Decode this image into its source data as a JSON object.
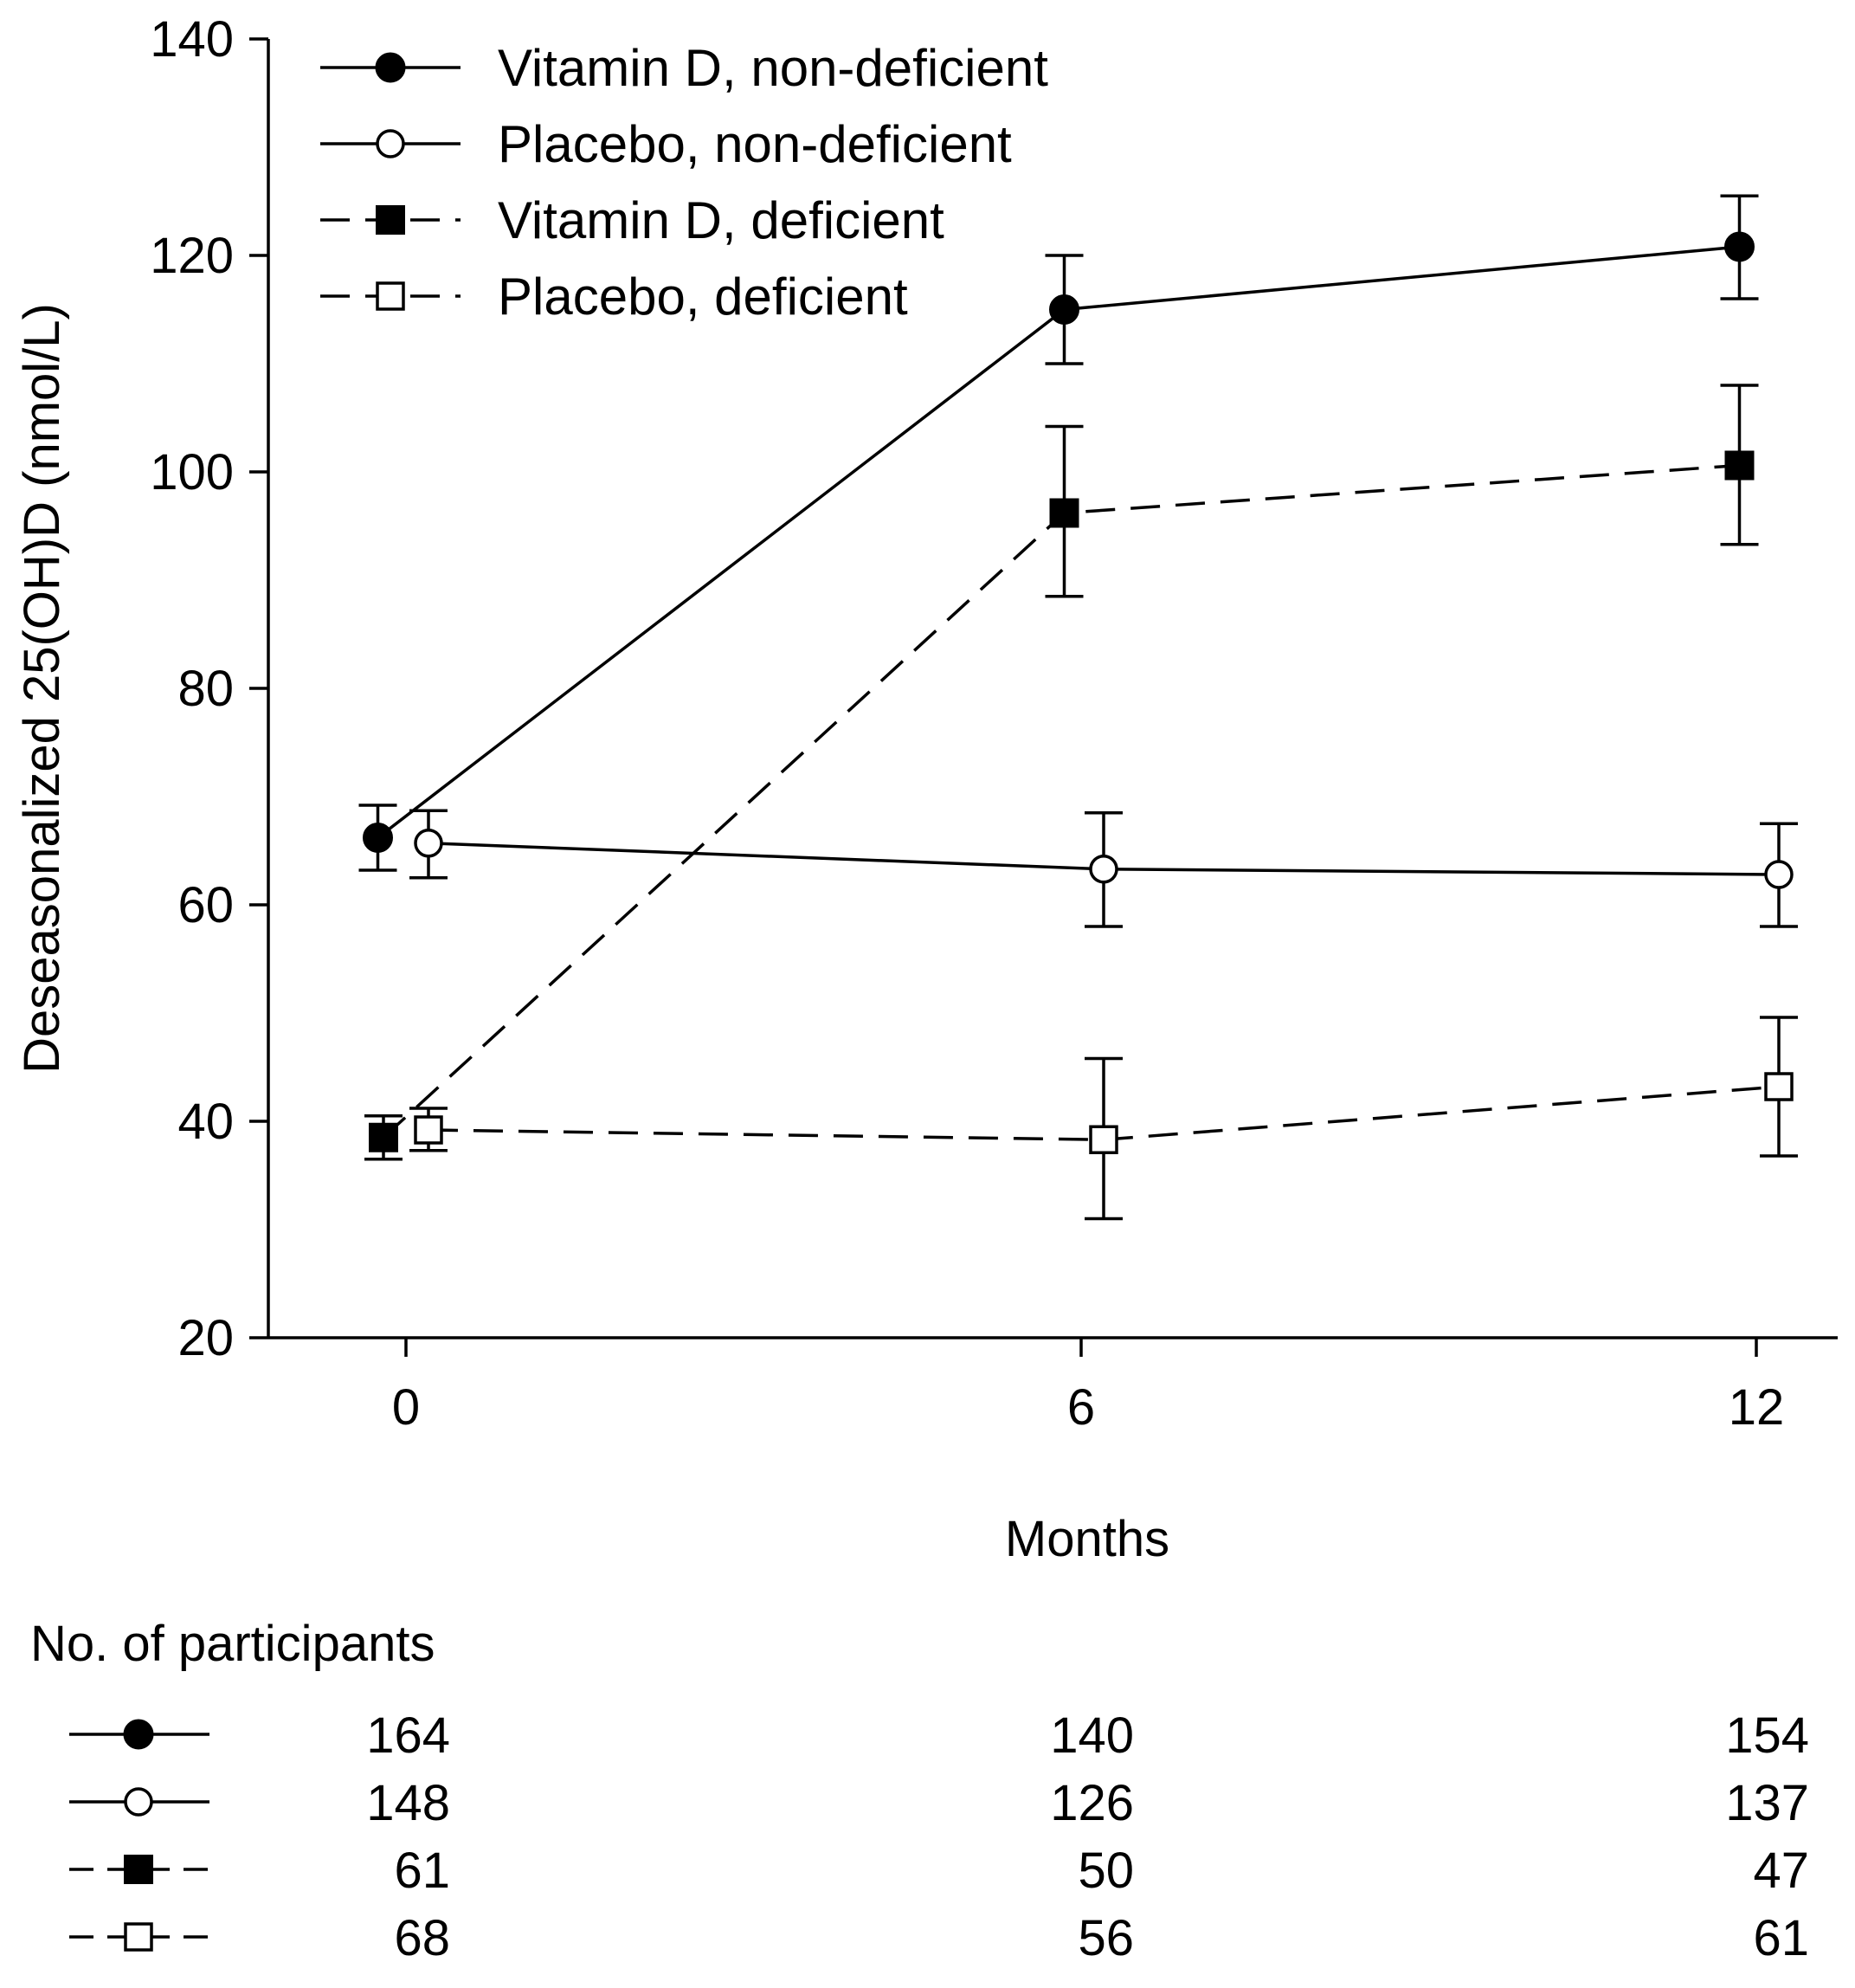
{
  "chart_data": {
    "type": "line",
    "xlabel": "Months",
    "ylabel": "Deseasonalized 25(OH)D (nmol/L)",
    "ylim": [
      20,
      140
    ],
    "yticks": [
      20,
      40,
      60,
      80,
      100,
      120,
      140
    ],
    "xticks": [
      0,
      6,
      12
    ],
    "xlim": [
      -1.2,
      12.7
    ],
    "legend_position": "top-left",
    "series": [
      {
        "name": "Vitamin D, non-deficient",
        "marker": "filled-circle",
        "line": "solid",
        "x": [
          -0.25,
          5.85,
          11.85
        ],
        "y": [
          66.2,
          115.0,
          120.8
        ],
        "err_low": [
          63.2,
          110.0,
          116.0
        ],
        "err_high": [
          69.2,
          120.0,
          125.5
        ],
        "participants": [
          "164",
          "140",
          "154"
        ]
      },
      {
        "name": "Placebo, non-deficient",
        "marker": "open-circle",
        "line": "solid",
        "x": [
          0.2,
          6.2,
          12.2
        ],
        "y": [
          65.7,
          63.3,
          62.8
        ],
        "err_low": [
          62.5,
          58.0,
          58.0
        ],
        "err_high": [
          68.7,
          68.5,
          67.5
        ],
        "participants": [
          "148",
          "126",
          "137"
        ]
      },
      {
        "name": "Vitamin D, deficient",
        "marker": "filled-square",
        "line": "dashed",
        "x": [
          -0.2,
          5.85,
          11.85
        ],
        "y": [
          38.5,
          96.2,
          100.6
        ],
        "err_low": [
          36.5,
          88.5,
          93.3
        ],
        "err_high": [
          40.5,
          104.2,
          108.0
        ],
        "participants": [
          "61",
          "50",
          "47"
        ]
      },
      {
        "name": "Placebo, deficient",
        "marker": "open-square",
        "line": "dashed",
        "x": [
          0.2,
          6.2,
          12.2
        ],
        "y": [
          39.2,
          38.3,
          43.2
        ],
        "err_low": [
          37.3,
          31.0,
          36.8
        ],
        "err_high": [
          41.2,
          45.8,
          49.6
        ],
        "participants": [
          "68",
          "56",
          "61"
        ]
      }
    ],
    "participants_title": "No. of participants"
  }
}
